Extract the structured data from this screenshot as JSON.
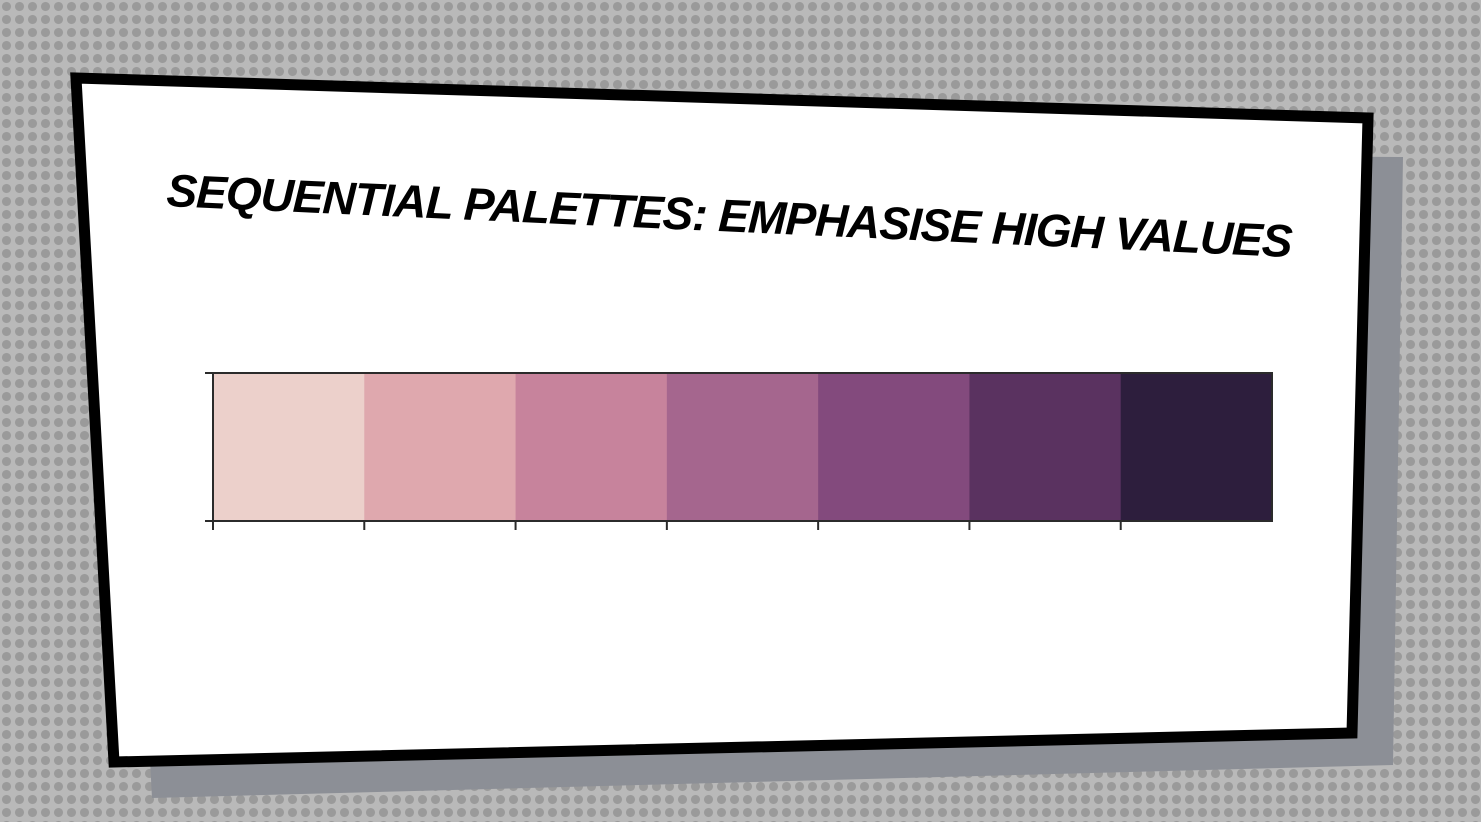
{
  "slide": {
    "title": "SEQUENTIAL PALETTES: EMPHASISE HIGH VALUES"
  },
  "palette": {
    "swatches": [
      "#ecd0cb",
      "#dfa8ae",
      "#c7839c",
      "#a5668e",
      "#834a7d",
      "#5a3260",
      "#2d1e3d"
    ]
  },
  "colors": {
    "background": "#b9b9b9",
    "panel": "#ffffff",
    "panel_border": "#000000",
    "panel_shadow": "#8c8f96"
  }
}
